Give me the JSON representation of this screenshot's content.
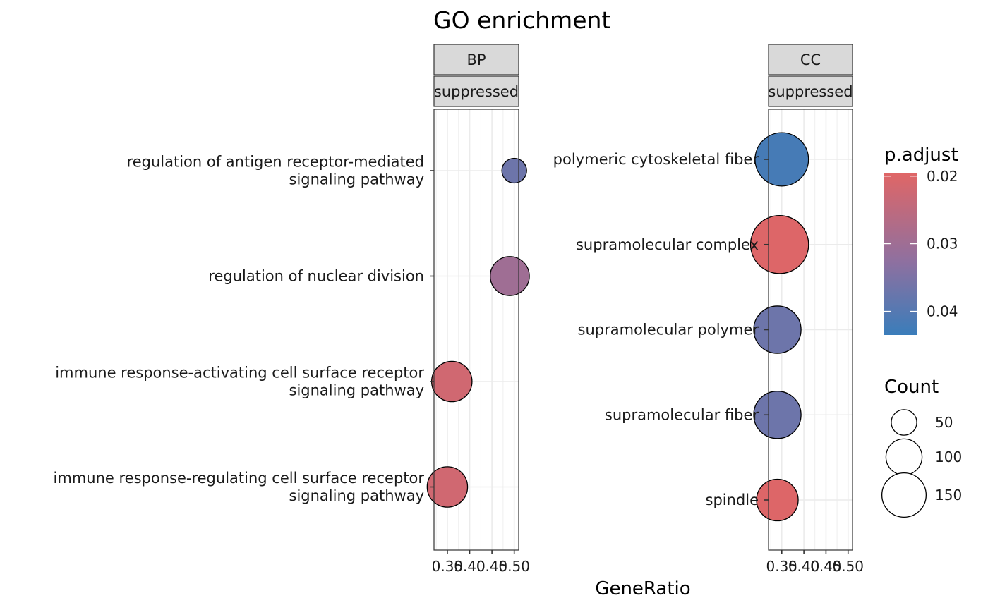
{
  "chart_data": {
    "type": "scatter",
    "title": "GO enrichment",
    "xlabel": "GeneRatio",
    "x_ticks": [
      "0.35",
      "0.40",
      "0.45",
      "0.50"
    ],
    "xlim": [
      0.32,
      0.51
    ],
    "colors": {
      "low": "#E06666",
      "high": "#3A7DBA"
    },
    "panels": [
      {
        "strip": [
          "BP",
          "suppressed"
        ],
        "categories": [
          [
            "regulation of antigen receptor-mediated",
            "signaling pathway"
          ],
          [
            "regulation of nuclear division"
          ],
          [
            "immune response-activating cell surface receptor",
            "signaling pathway"
          ],
          [
            "immune response-regulating cell surface receptor",
            "signaling pathway"
          ]
        ],
        "points": [
          {
            "x": 0.5,
            "count": 30,
            "p_adjust": 0.037
          },
          {
            "x": 0.49,
            "count": 75,
            "p_adjust": 0.03
          },
          {
            "x": 0.36,
            "count": 80,
            "p_adjust": 0.022
          },
          {
            "x": 0.35,
            "count": 80,
            "p_adjust": 0.022
          }
        ]
      },
      {
        "strip": [
          "CC",
          "suppressed"
        ],
        "categories": [
          [
            "polymeric cytoskeletal fiber"
          ],
          [
            "supramolecular complex"
          ],
          [
            "supramolecular polymer"
          ],
          [
            "supramolecular fiber"
          ],
          [
            "spindle"
          ]
        ],
        "points": [
          {
            "x": 0.35,
            "count": 140,
            "p_adjust": 0.042
          },
          {
            "x": 0.345,
            "count": 165,
            "p_adjust": 0.02
          },
          {
            "x": 0.34,
            "count": 110,
            "p_adjust": 0.037
          },
          {
            "x": 0.34,
            "count": 110,
            "p_adjust": 0.037
          },
          {
            "x": 0.34,
            "count": 85,
            "p_adjust": 0.02
          }
        ]
      }
    ],
    "legend": {
      "color_title": "p.adjust",
      "color_range": [
        0.0195,
        0.0435
      ],
      "color_ticks": [
        {
          "value": 0.02,
          "label": "0.02"
        },
        {
          "value": 0.03,
          "label": "0.03"
        },
        {
          "value": 0.04,
          "label": "0.04"
        }
      ],
      "size_title": "Count",
      "size_items": [
        {
          "value": 50,
          "label": "50"
        },
        {
          "value": 100,
          "label": "100"
        },
        {
          "value": 150,
          "label": "150"
        }
      ]
    }
  }
}
